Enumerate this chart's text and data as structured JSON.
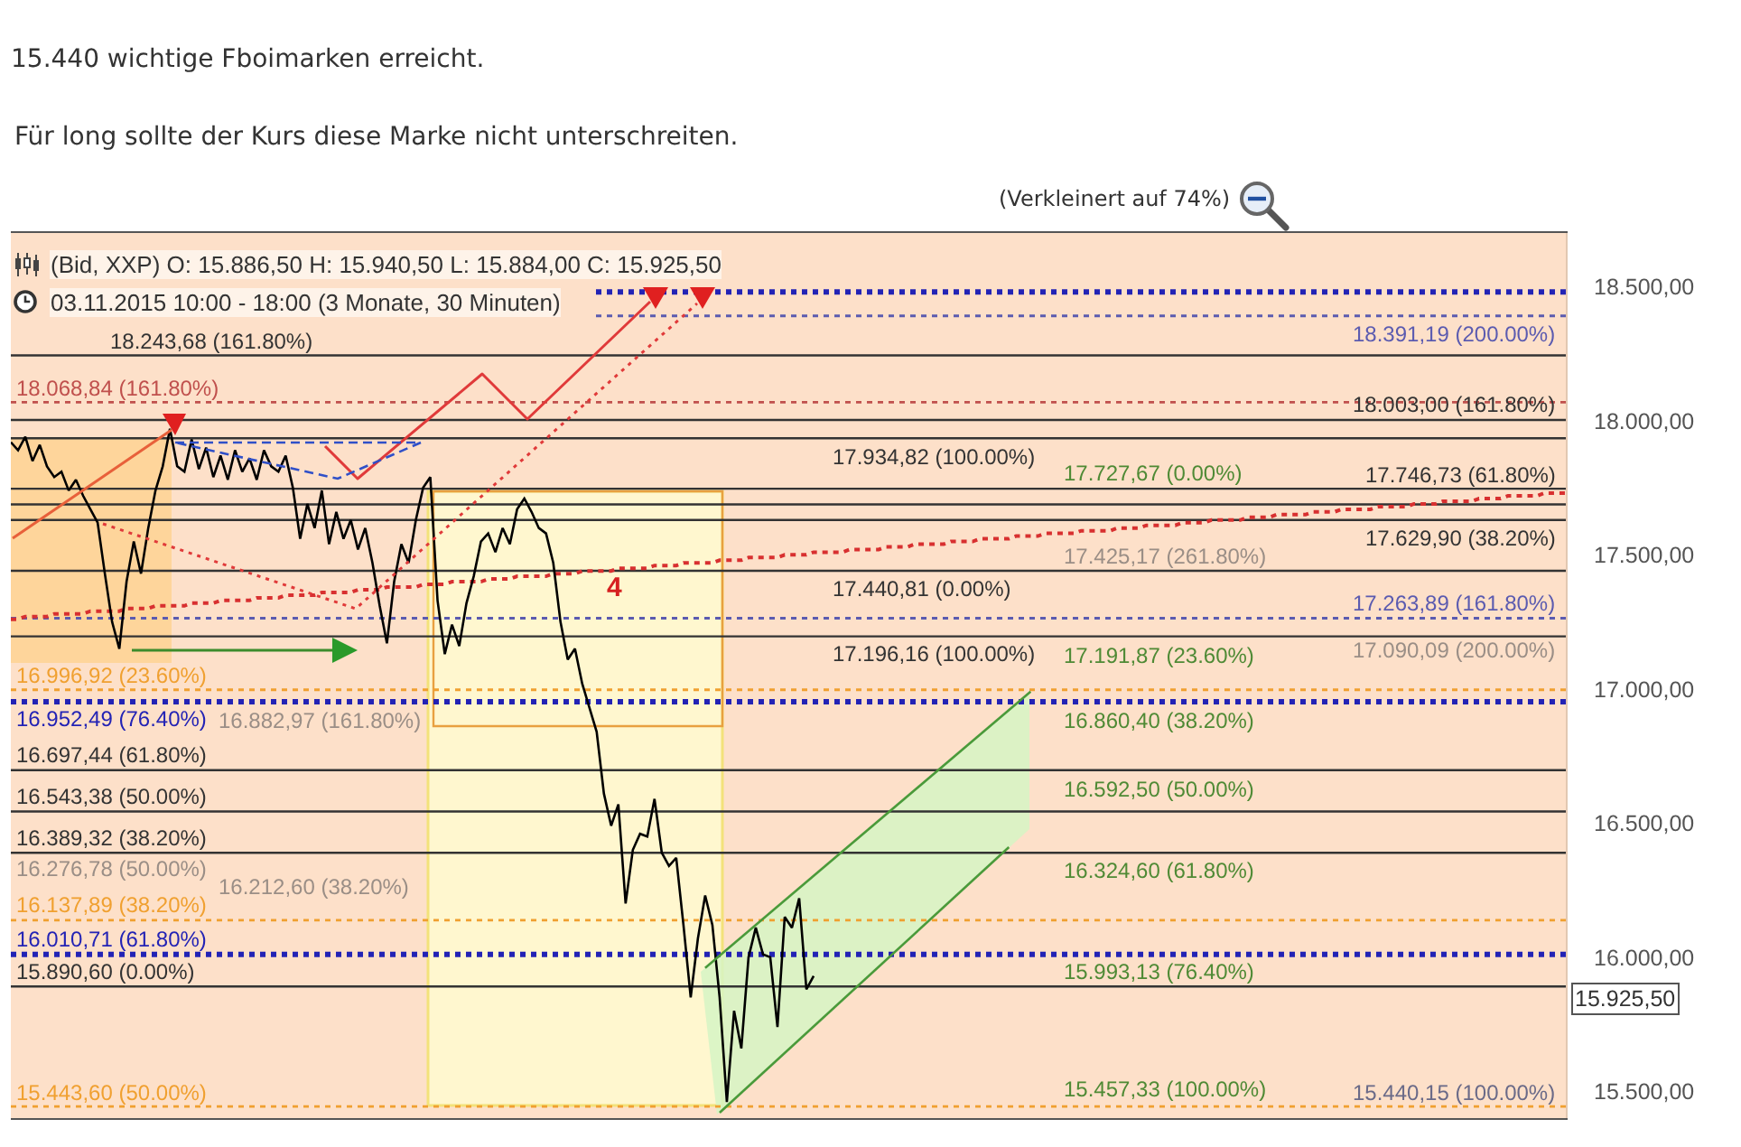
{
  "chart_data": {
    "type": "line",
    "title": "15.440 wichtige Fboimarken erreicht.",
    "subtitle": "Für long sollte der Kurs diese Marke nicht unterschreiten.",
    "categories": [
      null,
      null,
      null,
      null,
      null,
      null,
      null,
      null,
      null,
      null,
      null,
      null,
      null,
      null,
      null,
      null,
      null,
      null,
      null,
      null,
      null,
      null,
      null,
      null,
      null,
      null,
      null,
      null,
      null,
      null,
      null,
      null,
      null,
      null,
      null,
      null,
      null,
      null,
      null,
      null,
      null,
      null,
      null,
      null,
      null,
      null,
      null,
      null,
      null,
      null,
      null,
      null,
      null,
      null,
      null,
      null,
      null,
      null,
      null,
      null,
      null,
      null,
      null,
      null,
      null,
      null,
      null,
      null,
      null,
      null,
      null,
      null,
      null,
      null,
      null,
      null,
      null,
      null,
      null,
      null,
      null,
      null,
      null,
      null,
      null,
      null,
      null,
      null,
      null,
      null,
      null,
      null,
      null,
      null,
      null,
      null,
      null,
      null,
      null,
      null,
      null,
      null,
      null,
      null,
      null,
      null,
      null,
      null,
      null,
      null,
      null,
      null,
      null,
      null,
      null,
      null,
      null,
      null,
      null,
      null,
      null,
      null,
      null,
      null,
      null,
      null,
      null,
      null,
      null,
      null,
      null,
      null,
      null,
      null,
      null,
      null,
      null,
      null,
      null,
      null,
      null,
      null,
      null,
      null,
      null,
      null,
      null,
      null,
      null,
      null,
      null,
      null,
      null,
      null,
      null,
      null,
      null,
      null,
      null,
      null,
      null,
      null,
      null,
      null,
      null,
      null,
      null,
      null,
      null,
      null,
      null,
      null,
      null,
      null,
      null,
      null,
      null,
      null,
      null,
      null,
      null,
      null,
      null,
      null,
      null,
      null,
      null,
      null,
      null,
      null,
      null,
      null,
      null,
      null,
      null,
      null,
      null,
      null,
      null,
      null,
      null,
      null,
      null,
      null,
      null,
      null,
      null,
      null,
      null,
      null,
      null,
      null,
      null,
      null,
      null,
      null
    ],
    "series": [
      {
        "type": "line",
        "color": "#d83030",
        "line_style": "dotted",
        "values": [
          17260,
          17260,
          17270,
          17270,
          17270,
          17270,
          17280,
          17280,
          17280,
          17280,
          17280,
          17290,
          17290,
          17290,
          17290,
          17290,
          17300,
          17300,
          17300,
          17300,
          17310,
          17310,
          17310,
          17310,
          17310,
          17320,
          17320,
          17320,
          17320,
          17330,
          17330,
          17330,
          17330,
          17330,
          17340,
          17340,
          17340,
          17340,
          17350,
          17350,
          17350,
          17350,
          17350,
          17360,
          17360,
          17360,
          17360,
          17360,
          17370,
          17370,
          17370,
          17370,
          17380,
          17380,
          17380,
          17380,
          17380,
          17390,
          17390,
          17390,
          17390,
          17400,
          17400,
          17400,
          17400,
          17400,
          17410,
          17410,
          17410,
          17410,
          17420,
          17420,
          17420,
          17420,
          17420,
          17430,
          17430,
          17430,
          17430,
          17440,
          17440,
          17440,
          17440,
          17440,
          17450,
          17450,
          17450,
          17450,
          17450,
          17460,
          17460,
          17460,
          17460,
          17470,
          17470,
          17470,
          17470,
          17470,
          17480,
          17480,
          17480,
          17480,
          17490,
          17490,
          17490,
          17490,
          17490,
          17500,
          17500,
          17500,
          17500,
          17510,
          17510,
          17510,
          17510,
          17510,
          17520,
          17520,
          17520,
          17520,
          17520,
          17530,
          17530,
          17530,
          17530,
          17540,
          17540,
          17540,
          17540,
          17540,
          17550,
          17550,
          17550,
          17550,
          17560,
          17560,
          17560,
          17560,
          17560,
          17570,
          17570,
          17570,
          17570,
          17580,
          17580,
          17580,
          17580,
          17580,
          17590,
          17590,
          17590,
          17590,
          17590,
          17600,
          17600,
          17600,
          17600,
          17610,
          17610,
          17610,
          17610,
          17610,
          17620,
          17620,
          17620,
          17620,
          17630,
          17630,
          17630,
          17630,
          17630,
          17640,
          17640,
          17640,
          17640,
          17650,
          17650,
          17650,
          17650,
          17650,
          17660,
          17660,
          17660,
          17660,
          17670,
          17670,
          17670,
          17670,
          17670,
          17680,
          17680,
          17680,
          17680,
          17680,
          17690,
          17690,
          17690,
          17690,
          17700,
          17700,
          17700,
          17700,
          17700,
          17710,
          17710,
          17710,
          17710,
          17720,
          17720,
          17720,
          17720,
          17720,
          17730,
          17730,
          17730,
          17730
        ]
      },
      {
        "color": "#000000",
        "values": [
          17920,
          17890,
          17940,
          17850,
          17910,
          17830,
          17790,
          17810,
          17740,
          17780,
          17720,
          17670,
          17620,
          17430,
          17250,
          17150,
          17400,
          17550,
          17430,
          17600,
          17740,
          17830,
          17970,
          17830,
          17810,
          17930,
          17820,
          17900,
          17790,
          17870,
          17780,
          17890,
          17810,
          17860,
          17780,
          17890,
          17830,
          17810,
          17870,
          17750,
          17560,
          17690,
          17600,
          17740,
          17540,
          17660,
          17560,
          17630,
          17520,
          17600,
          17470,
          17310,
          17170,
          17400,
          17540,
          17470,
          17630,
          17750,
          17790,
          17330,
          17130,
          17240,
          17160,
          17320,
          17420,
          17550,
          17580,
          17510,
          17600,
          17540,
          17670,
          17710,
          17660,
          17600,
          17580,
          17470,
          17250,
          17110,
          17150,
          17020,
          16930,
          16840,
          16610,
          16490,
          16570,
          16200,
          16400,
          16460,
          16450,
          16590,
          16390,
          16340,
          16370,
          16120,
          15850,
          16070,
          16230,
          16120,
          15850,
          15460,
          15800,
          15660,
          16000,
          16110,
          16010,
          16000,
          15740,
          16150,
          16110,
          16220,
          15880,
          15930,
          null,
          null,
          null,
          null,
          null,
          null,
          null,
          null,
          null,
          null,
          null,
          null,
          null,
          null,
          null,
          null,
          null,
          null,
          null,
          null,
          null,
          null,
          null,
          null,
          null,
          null,
          null,
          null,
          null,
          null,
          null,
          null,
          null,
          null,
          null,
          null,
          null,
          null,
          null,
          null,
          null,
          null,
          null,
          null,
          null,
          null,
          null,
          null,
          null,
          null,
          null,
          null,
          null,
          null,
          null,
          null,
          null,
          null,
          null,
          null,
          null,
          null,
          null,
          null,
          null,
          null,
          null,
          null,
          null,
          null,
          null,
          null,
          null,
          null,
          null,
          null,
          null,
          null,
          null,
          null,
          null,
          null,
          null,
          null,
          null,
          null,
          null,
          null,
          null,
          null,
          null,
          null,
          null,
          null,
          null,
          null,
          null,
          null,
          null,
          null,
          null,
          null,
          null,
          null
        ]
      },
      {
        "type": "line",
        "color": "#4a9a3a",
        "values": [
          null,
          null,
          null,
          null,
          null,
          null,
          null,
          null,
          null,
          null,
          null,
          null,
          null,
          null,
          null,
          null,
          null,
          null,
          null,
          null,
          null,
          null,
          null,
          null,
          null,
          null,
          null,
          null,
          null,
          null,
          null,
          null,
          null,
          null,
          null,
          null,
          null,
          null,
          null,
          null,
          null,
          null,
          null,
          null,
          null,
          null,
          null,
          null,
          null,
          null,
          null,
          null,
          null,
          null,
          null,
          null,
          null,
          null,
          null,
          null,
          null,
          null,
          null,
          null,
          null,
          null,
          null,
          null,
          null,
          null,
          null,
          null,
          null,
          null,
          null,
          null,
          null,
          null,
          null,
          null,
          null,
          null,
          null,
          null,
          null,
          null,
          null,
          null,
          null,
          null,
          null,
          null,
          null,
          null,
          null,
          null,
          15960,
          null,
          null,
          null,
          null,
          null,
          null,
          null,
          null,
          null,
          null,
          null,
          null,
          null,
          null,
          null,
          null,
          null,
          null,
          null,
          null,
          null,
          null,
          null,
          null,
          null,
          null,
          null,
          null,
          null,
          null,
          null,
          null,
          null,
          null,
          null,
          null,
          null,
          null,
          null,
          null,
          null,
          null,
          null,
          null,
          16990,
          null,
          null,
          null,
          null,
          null,
          null,
          null,
          null,
          null,
          null,
          null,
          null,
          null,
          null,
          null,
          null,
          null,
          null,
          null,
          null,
          null,
          null,
          null,
          null,
          null,
          null,
          null,
          null,
          null,
          null,
          null,
          null,
          null,
          null,
          null,
          null,
          null,
          null,
          null,
          null,
          null,
          null,
          null,
          null,
          null,
          null,
          null,
          null,
          null,
          null,
          null,
          null,
          null,
          null,
          null,
          null,
          null,
          null,
          null,
          null,
          null,
          null,
          null,
          null,
          null,
          null,
          null,
          null,
          null,
          null,
          null,
          null,
          null,
          null
        ]
      },
      {
        "type": "line",
        "color": "#4a9a3a",
        "values": [
          null,
          null,
          null,
          null,
          null,
          null,
          null,
          null,
          null,
          null,
          null,
          null,
          null,
          null,
          null,
          null,
          null,
          null,
          null,
          null,
          null,
          null,
          null,
          null,
          null,
          null,
          null,
          null,
          null,
          null,
          null,
          null,
          null,
          null,
          null,
          null,
          null,
          null,
          null,
          null,
          null,
          null,
          null,
          null,
          null,
          null,
          null,
          null,
          null,
          null,
          null,
          null,
          null,
          null,
          null,
          null,
          null,
          null,
          null,
          null,
          null,
          null,
          null,
          null,
          null,
          null,
          null,
          null,
          null,
          null,
          null,
          null,
          null,
          null,
          null,
          null,
          null,
          null,
          null,
          null,
          null,
          null,
          null,
          null,
          null,
          null,
          null,
          null,
          null,
          null,
          null,
          null,
          null,
          null,
          null,
          null,
          null,
          null,
          15420,
          null,
          null,
          null,
          null,
          null,
          null,
          null,
          null,
          null,
          null,
          null,
          null,
          null,
          null,
          null,
          null,
          null,
          null,
          null,
          null,
          null,
          null,
          null,
          null,
          null,
          null,
          null,
          null,
          null,
          null,
          null,
          null,
          null,
          null,
          null,
          null,
          null,
          null,
          null,
          16410,
          null,
          null,
          null,
          null,
          null,
          null,
          null,
          null,
          null,
          null,
          null,
          null,
          null,
          null,
          null,
          null,
          null,
          null,
          null,
          null,
          null,
          null,
          null,
          null,
          null,
          null,
          null,
          null,
          null,
          null,
          null,
          null,
          null,
          null,
          null,
          null,
          null,
          null,
          null,
          null,
          null,
          null,
          null,
          null,
          null,
          null,
          null,
          null,
          null,
          null,
          null,
          null,
          null,
          null,
          null,
          null,
          null,
          null,
          null,
          null,
          null,
          null,
          null,
          null,
          null,
          null,
          null,
          null,
          null,
          null,
          null,
          null,
          null,
          null,
          null,
          null,
          null
        ]
      }
    ],
    "ylim": [
      15400,
      18700
    ],
    "yticks": [
      {
        "value": 15500,
        "label": "15.500,00"
      },
      {
        "value": 16000,
        "label": "16.000,00"
      },
      {
        "value": 16500,
        "label": "16.500,00"
      },
      {
        "value": 17000,
        "label": "17.000,00"
      },
      {
        "value": 17500,
        "label": "17.500,00"
      },
      {
        "value": 18000,
        "label": "18.000,00"
      },
      {
        "value": 18500,
        "label": "18.500,00"
      }
    ],
    "tick_labels": "y",
    "ref_lines": [
      {
        "axis": "y",
        "value": 18480,
        "color": "#2323b5",
        "line_style": "dotted"
      },
      {
        "axis": "y",
        "value": 18391.19,
        "label": "18.391,19 (200.00%)",
        "color": "#5b5bb0",
        "line_style": "dotted"
      },
      {
        "axis": "y",
        "value": 18243.68,
        "label": "18.243,68 (161.80%)",
        "color": "#333333",
        "line_style": "solid"
      },
      {
        "axis": "y",
        "value": 18068.84,
        "label": "18.068,84 (161.80%)",
        "color": "#c0504d",
        "line_style": "dotted"
      },
      {
        "axis": "y",
        "value": 18003.0,
        "label": "18.003,00 (161.80%)",
        "color": "#333333",
        "line_style": "solid"
      },
      {
        "axis": "y",
        "value": 17934.82,
        "label": "17.934,82 (100.00%)",
        "color": "#333333",
        "line_style": "solid"
      },
      {
        "axis": "y",
        "value": 17746.73,
        "label": "17.746,73 (61.80%)",
        "color": "#333333",
        "line_style": "solid"
      },
      {
        "axis": "y",
        "value": 17688.32,
        "color": "#333333",
        "line_style": "solid"
      },
      {
        "axis": "y",
        "value": 17629.9,
        "label": "17.629,90 (38.20%)",
        "color": "#333333",
        "line_style": "solid"
      },
      {
        "axis": "y",
        "value": 17440.81,
        "label": "17.440,81 (0.00%)",
        "color": "#333333",
        "line_style": "solid"
      },
      {
        "axis": "y",
        "value": 17263.89,
        "label": "17.263,89 (161.80%)",
        "color": "#5b5bb0",
        "line_style": "dotted"
      },
      {
        "axis": "y",
        "value": 17196.16,
        "label": "17.196,16 (100.00%)",
        "color": "#333333",
        "line_style": "solid"
      },
      {
        "axis": "y",
        "value": 16996.92,
        "label": "16.996,92 (23.60%)",
        "color": "#f0a030",
        "line_style": "dotted"
      },
      {
        "axis": "y",
        "value": 16952.49,
        "label": "16.952,49 (76.40%)",
        "color": "#2323b5",
        "line_style": "dotted"
      },
      {
        "axis": "y",
        "value": 16697.44,
        "label": "16.697,44 (61.80%)",
        "color": "#333333",
        "line_style": "solid"
      },
      {
        "axis": "y",
        "value": 16543.38,
        "label": "16.543,38 (50.00%)",
        "color": "#333333",
        "line_style": "solid"
      },
      {
        "axis": "y",
        "value": 16389.32,
        "label": "16.389,32 (38.20%)",
        "color": "#333333",
        "line_style": "solid"
      },
      {
        "axis": "y",
        "value": 16137.89,
        "label": "16.137,89 (38.20%)",
        "color": "#f0a030",
        "line_style": "dotted"
      },
      {
        "axis": "y",
        "value": 16010.71,
        "label": "16.010,71 (61.80%)",
        "color": "#2323b5",
        "line_style": "dotted"
      },
      {
        "axis": "y",
        "value": 15890.6,
        "label": "15.890,60 (0.00%)",
        "color": "#333333",
        "line_style": "solid"
      },
      {
        "axis": "y",
        "value": 15443.6,
        "label": "15.443,60 (50.00%)",
        "color": "#f0a030",
        "line_style": "dotted"
      }
    ],
    "annotations": [
      "(Bid, XXP) O: 15.886,50 H: 15.940,50 L: 15.884,00 C: 15.925,50",
      "03.11.2015 10:00 - 18:00 (3 Monate, 30 Minuten)",
      "(Verkleinert auf 74%)",
      "4",
      "17.727,67 (0.00%)",
      "17.191,87 (23.60%)",
      "16.860,40 (38.20%)",
      "16.592,50 (50.00%)",
      "16.324,60 (61.80%)",
      "15.993,13 (76.40%)",
      "15.457,33 (100.00%)",
      "17.425,17 (261.80%)",
      "17.090,09 (200.00%)",
      "16.882,97 (161.80%)",
      "16.276,78 (50.00%)",
      "16.212,60 (38.20%)",
      "15.440,15 (100.00%)",
      "15.925,50"
    ]
  }
}
